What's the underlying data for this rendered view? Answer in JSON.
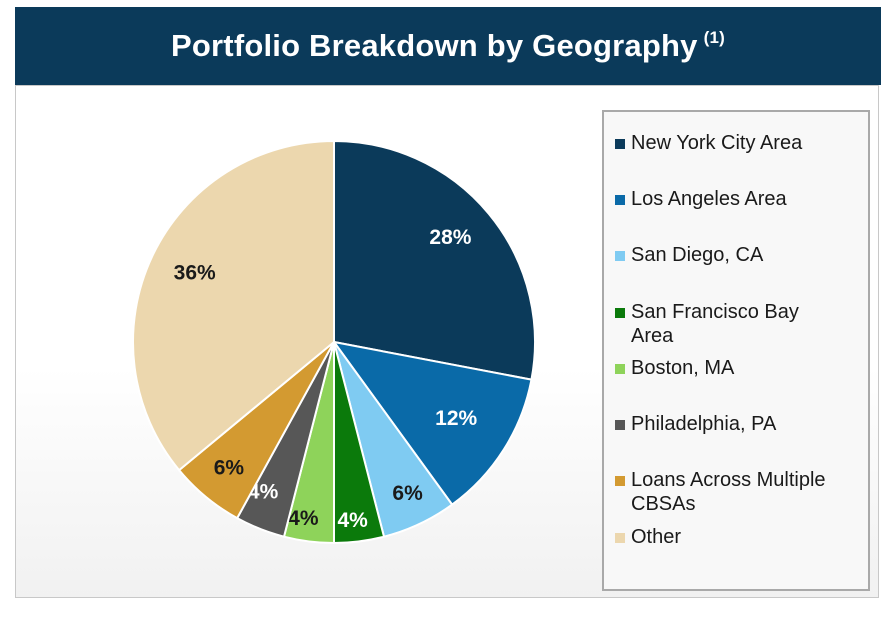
{
  "header": {
    "title": "Portfolio Breakdown by Geography",
    "footnote": "(1)"
  },
  "chart_data": {
    "type": "pie",
    "title": "Portfolio Breakdown by Geography",
    "categories": [
      "New York City Area",
      "Los Angeles Area",
      "San Diego, CA",
      "San Francisco Bay Area",
      "Boston, MA",
      "Philadelphia, PA",
      "Loans Across Multiple CBSAs",
      "Other"
    ],
    "values": [
      28,
      12,
      6,
      4,
      4,
      4,
      6,
      36
    ],
    "labels": [
      "28%",
      "12%",
      "6%",
      "4%",
      "4%",
      "4%",
      "6%",
      "36%"
    ],
    "colors": [
      "#0b3a5a",
      "#0a6aa8",
      "#7fcbf2",
      "#0b7a0b",
      "#8ed35a",
      "#575757",
      "#d39a31",
      "#ecd7ae"
    ],
    "label_colors": [
      "#ffffff",
      "#ffffff",
      "#1a1a1a",
      "#ffffff",
      "#1a1a1a",
      "#ffffff",
      "#1a1a1a",
      "#1a1a1a"
    ],
    "legend_position": "right"
  },
  "legend": {
    "items": [
      {
        "label": "New York City Area",
        "color": "#0b3a5a"
      },
      {
        "label": "Los Angeles Area",
        "color": "#0a6aa8"
      },
      {
        "label": "San Diego, CA",
        "color": "#7fcbf2"
      },
      {
        "label": "San Francisco Bay Area",
        "color": "#0b7a0b"
      },
      {
        "label": "Boston, MA",
        "color": "#8ed35a"
      },
      {
        "label": "Philadelphia, PA",
        "color": "#575757"
      },
      {
        "label": "Loans Across Multiple CBSAs",
        "color": "#d39a31"
      },
      {
        "label": "Other",
        "color": "#ecd7ae"
      }
    ]
  }
}
